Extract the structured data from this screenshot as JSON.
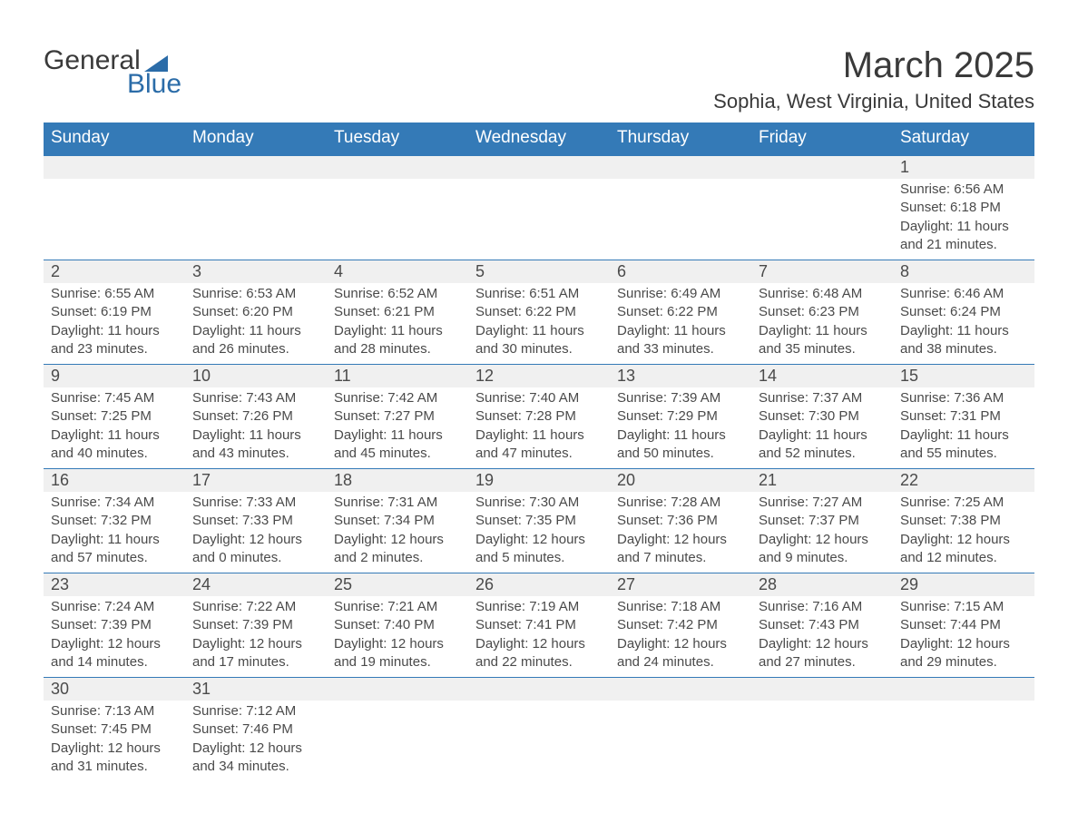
{
  "logo": {
    "text1": "General",
    "text2": "Blue",
    "brand_color": "#2b6ca8"
  },
  "header": {
    "month_title": "March 2025",
    "location": "Sophia, West Virginia, United States"
  },
  "colors": {
    "header_bg": "#347ab7",
    "day_number_bg": "#f0f0f0",
    "border_color": "#347ab7",
    "text_color": "#4a4a4a",
    "title_color": "#3a3a3a"
  },
  "weekdays": [
    "Sunday",
    "Monday",
    "Tuesday",
    "Wednesday",
    "Thursday",
    "Friday",
    "Saturday"
  ],
  "weeks": [
    [
      {
        "empty": true
      },
      {
        "empty": true
      },
      {
        "empty": true
      },
      {
        "empty": true
      },
      {
        "empty": true
      },
      {
        "empty": true
      },
      {
        "day": "1",
        "sunrise": "Sunrise: 6:56 AM",
        "sunset": "Sunset: 6:18 PM",
        "daylight1": "Daylight: 11 hours",
        "daylight2": "and 21 minutes."
      }
    ],
    [
      {
        "day": "2",
        "sunrise": "Sunrise: 6:55 AM",
        "sunset": "Sunset: 6:19 PM",
        "daylight1": "Daylight: 11 hours",
        "daylight2": "and 23 minutes."
      },
      {
        "day": "3",
        "sunrise": "Sunrise: 6:53 AM",
        "sunset": "Sunset: 6:20 PM",
        "daylight1": "Daylight: 11 hours",
        "daylight2": "and 26 minutes."
      },
      {
        "day": "4",
        "sunrise": "Sunrise: 6:52 AM",
        "sunset": "Sunset: 6:21 PM",
        "daylight1": "Daylight: 11 hours",
        "daylight2": "and 28 minutes."
      },
      {
        "day": "5",
        "sunrise": "Sunrise: 6:51 AM",
        "sunset": "Sunset: 6:22 PM",
        "daylight1": "Daylight: 11 hours",
        "daylight2": "and 30 minutes."
      },
      {
        "day": "6",
        "sunrise": "Sunrise: 6:49 AM",
        "sunset": "Sunset: 6:22 PM",
        "daylight1": "Daylight: 11 hours",
        "daylight2": "and 33 minutes."
      },
      {
        "day": "7",
        "sunrise": "Sunrise: 6:48 AM",
        "sunset": "Sunset: 6:23 PM",
        "daylight1": "Daylight: 11 hours",
        "daylight2": "and 35 minutes."
      },
      {
        "day": "8",
        "sunrise": "Sunrise: 6:46 AM",
        "sunset": "Sunset: 6:24 PM",
        "daylight1": "Daylight: 11 hours",
        "daylight2": "and 38 minutes."
      }
    ],
    [
      {
        "day": "9",
        "sunrise": "Sunrise: 7:45 AM",
        "sunset": "Sunset: 7:25 PM",
        "daylight1": "Daylight: 11 hours",
        "daylight2": "and 40 minutes."
      },
      {
        "day": "10",
        "sunrise": "Sunrise: 7:43 AM",
        "sunset": "Sunset: 7:26 PM",
        "daylight1": "Daylight: 11 hours",
        "daylight2": "and 43 minutes."
      },
      {
        "day": "11",
        "sunrise": "Sunrise: 7:42 AM",
        "sunset": "Sunset: 7:27 PM",
        "daylight1": "Daylight: 11 hours",
        "daylight2": "and 45 minutes."
      },
      {
        "day": "12",
        "sunrise": "Sunrise: 7:40 AM",
        "sunset": "Sunset: 7:28 PM",
        "daylight1": "Daylight: 11 hours",
        "daylight2": "and 47 minutes."
      },
      {
        "day": "13",
        "sunrise": "Sunrise: 7:39 AM",
        "sunset": "Sunset: 7:29 PM",
        "daylight1": "Daylight: 11 hours",
        "daylight2": "and 50 minutes."
      },
      {
        "day": "14",
        "sunrise": "Sunrise: 7:37 AM",
        "sunset": "Sunset: 7:30 PM",
        "daylight1": "Daylight: 11 hours",
        "daylight2": "and 52 minutes."
      },
      {
        "day": "15",
        "sunrise": "Sunrise: 7:36 AM",
        "sunset": "Sunset: 7:31 PM",
        "daylight1": "Daylight: 11 hours",
        "daylight2": "and 55 minutes."
      }
    ],
    [
      {
        "day": "16",
        "sunrise": "Sunrise: 7:34 AM",
        "sunset": "Sunset: 7:32 PM",
        "daylight1": "Daylight: 11 hours",
        "daylight2": "and 57 minutes."
      },
      {
        "day": "17",
        "sunrise": "Sunrise: 7:33 AM",
        "sunset": "Sunset: 7:33 PM",
        "daylight1": "Daylight: 12 hours",
        "daylight2": "and 0 minutes."
      },
      {
        "day": "18",
        "sunrise": "Sunrise: 7:31 AM",
        "sunset": "Sunset: 7:34 PM",
        "daylight1": "Daylight: 12 hours",
        "daylight2": "and 2 minutes."
      },
      {
        "day": "19",
        "sunrise": "Sunrise: 7:30 AM",
        "sunset": "Sunset: 7:35 PM",
        "daylight1": "Daylight: 12 hours",
        "daylight2": "and 5 minutes."
      },
      {
        "day": "20",
        "sunrise": "Sunrise: 7:28 AM",
        "sunset": "Sunset: 7:36 PM",
        "daylight1": "Daylight: 12 hours",
        "daylight2": "and 7 minutes."
      },
      {
        "day": "21",
        "sunrise": "Sunrise: 7:27 AM",
        "sunset": "Sunset: 7:37 PM",
        "daylight1": "Daylight: 12 hours",
        "daylight2": "and 9 minutes."
      },
      {
        "day": "22",
        "sunrise": "Sunrise: 7:25 AM",
        "sunset": "Sunset: 7:38 PM",
        "daylight1": "Daylight: 12 hours",
        "daylight2": "and 12 minutes."
      }
    ],
    [
      {
        "day": "23",
        "sunrise": "Sunrise: 7:24 AM",
        "sunset": "Sunset: 7:39 PM",
        "daylight1": "Daylight: 12 hours",
        "daylight2": "and 14 minutes."
      },
      {
        "day": "24",
        "sunrise": "Sunrise: 7:22 AM",
        "sunset": "Sunset: 7:39 PM",
        "daylight1": "Daylight: 12 hours",
        "daylight2": "and 17 minutes."
      },
      {
        "day": "25",
        "sunrise": "Sunrise: 7:21 AM",
        "sunset": "Sunset: 7:40 PM",
        "daylight1": "Daylight: 12 hours",
        "daylight2": "and 19 minutes."
      },
      {
        "day": "26",
        "sunrise": "Sunrise: 7:19 AM",
        "sunset": "Sunset: 7:41 PM",
        "daylight1": "Daylight: 12 hours",
        "daylight2": "and 22 minutes."
      },
      {
        "day": "27",
        "sunrise": "Sunrise: 7:18 AM",
        "sunset": "Sunset: 7:42 PM",
        "daylight1": "Daylight: 12 hours",
        "daylight2": "and 24 minutes."
      },
      {
        "day": "28",
        "sunrise": "Sunrise: 7:16 AM",
        "sunset": "Sunset: 7:43 PM",
        "daylight1": "Daylight: 12 hours",
        "daylight2": "and 27 minutes."
      },
      {
        "day": "29",
        "sunrise": "Sunrise: 7:15 AM",
        "sunset": "Sunset: 7:44 PM",
        "daylight1": "Daylight: 12 hours",
        "daylight2": "and 29 minutes."
      }
    ],
    [
      {
        "day": "30",
        "sunrise": "Sunrise: 7:13 AM",
        "sunset": "Sunset: 7:45 PM",
        "daylight1": "Daylight: 12 hours",
        "daylight2": "and 31 minutes."
      },
      {
        "day": "31",
        "sunrise": "Sunrise: 7:12 AM",
        "sunset": "Sunset: 7:46 PM",
        "daylight1": "Daylight: 12 hours",
        "daylight2": "and 34 minutes."
      },
      {
        "empty": true
      },
      {
        "empty": true
      },
      {
        "empty": true
      },
      {
        "empty": true
      },
      {
        "empty": true
      }
    ]
  ]
}
